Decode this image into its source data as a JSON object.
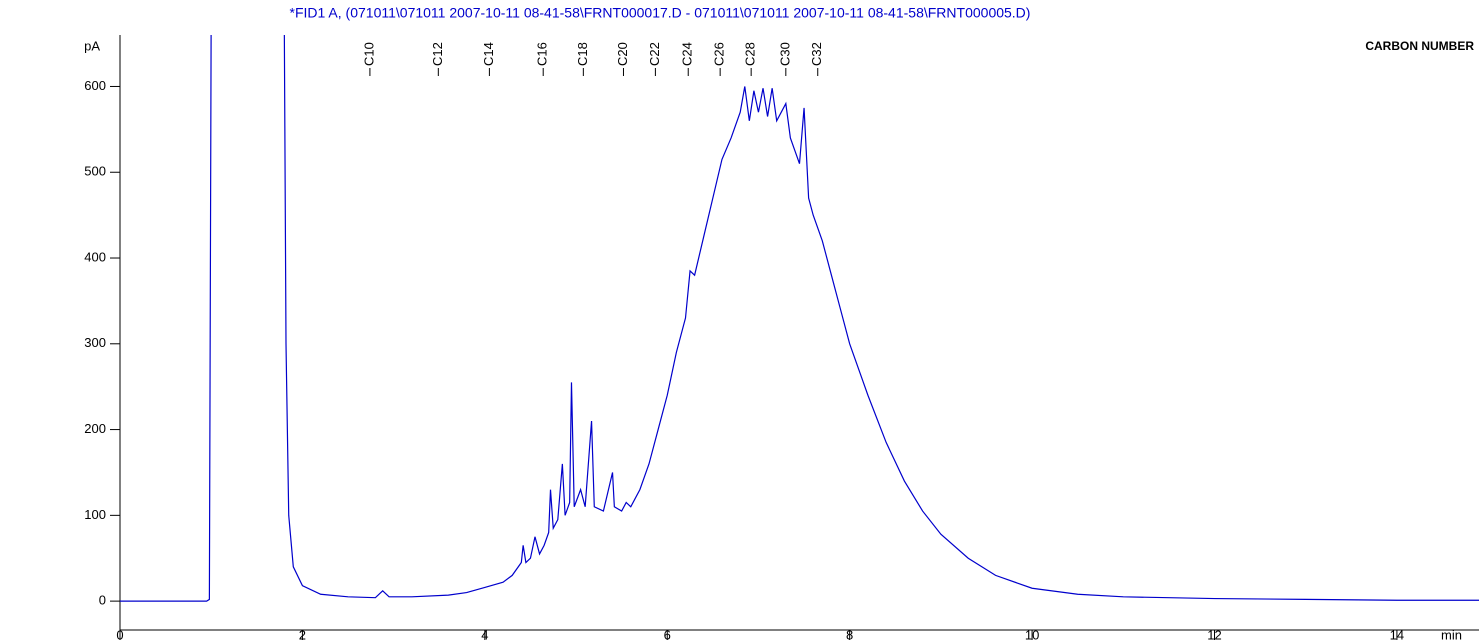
{
  "chart_data": {
    "type": "line",
    "title": "*FID1 A,  (071011\\071011 2007-10-11 08-41-58\\FRNT000017.D - 071011\\071011 2007-10-11 08-41-58\\FRNT000005.D)",
    "y_label": "pA",
    "x_label": "min",
    "annotation_title": "CARBON NUMBER",
    "markers": [
      {
        "x": 2.74,
        "label": "C10"
      },
      {
        "x": 3.49,
        "label": "C12"
      },
      {
        "x": 4.05,
        "label": "C14"
      },
      {
        "x": 4.64,
        "label": "C16"
      },
      {
        "x": 5.08,
        "label": "C18"
      },
      {
        "x": 5.52,
        "label": "C20"
      },
      {
        "x": 5.87,
        "label": "C22"
      },
      {
        "x": 6.23,
        "label": "C24"
      },
      {
        "x": 6.58,
        "label": "C26"
      },
      {
        "x": 6.92,
        "label": "C28"
      },
      {
        "x": 7.3,
        "label": "C30"
      },
      {
        "x": 7.65,
        "label": "C32"
      }
    ],
    "x": [
      0,
      0.95,
      0.98,
      1.0,
      1.02,
      1.8,
      1.82,
      1.85,
      1.9,
      2.0,
      2.2,
      2.5,
      2.8,
      2.88,
      2.95,
      3.2,
      3.6,
      3.8,
      4.0,
      4.2,
      4.3,
      4.4,
      4.42,
      4.45,
      4.5,
      4.55,
      4.6,
      4.65,
      4.7,
      4.72,
      4.75,
      4.8,
      4.85,
      4.88,
      4.93,
      4.95,
      4.98,
      5.05,
      5.1,
      5.17,
      5.2,
      5.3,
      5.4,
      5.42,
      5.5,
      5.55,
      5.6,
      5.7,
      5.8,
      5.9,
      6.0,
      6.1,
      6.2,
      6.25,
      6.3,
      6.4,
      6.5,
      6.6,
      6.7,
      6.8,
      6.85,
      6.9,
      6.95,
      7.0,
      7.05,
      7.1,
      7.15,
      7.2,
      7.3,
      7.35,
      7.45,
      7.5,
      7.55,
      7.6,
      7.7,
      7.8,
      7.9,
      8.0,
      8.2,
      8.4,
      8.6,
      8.8,
      9.0,
      9.3,
      9.6,
      10.0,
      10.5,
      11,
      12,
      13,
      14,
      14.9
    ],
    "series": [
      {
        "name": "FID1 A",
        "color": "#0000cc",
        "values": [
          0,
          0,
          2,
          700,
          700,
          700,
          300,
          100,
          40,
          18,
          8,
          5,
          4,
          12,
          5,
          5,
          7,
          10,
          16,
          22,
          30,
          45,
          65,
          45,
          50,
          75,
          55,
          65,
          80,
          130,
          85,
          95,
          160,
          100,
          115,
          255,
          110,
          130,
          110,
          210,
          110,
          105,
          150,
          110,
          105,
          115,
          110,
          130,
          160,
          200,
          240,
          290,
          330,
          385,
          380,
          425,
          470,
          515,
          540,
          570,
          600,
          560,
          595,
          570,
          598,
          565,
          598,
          560,
          580,
          540,
          510,
          575,
          470,
          450,
          420,
          380,
          340,
          300,
          240,
          185,
          140,
          105,
          78,
          50,
          30,
          15,
          8,
          5,
          3,
          2,
          1,
          1
        ]
      }
    ],
    "xlim": [
      0,
      14.9
    ],
    "ylim": [
      -36,
      660
    ],
    "xticks": [
      0,
      2,
      4,
      6,
      8,
      10,
      12,
      14
    ],
    "yticks": [
      0,
      100,
      200,
      300,
      400,
      500,
      600
    ]
  }
}
